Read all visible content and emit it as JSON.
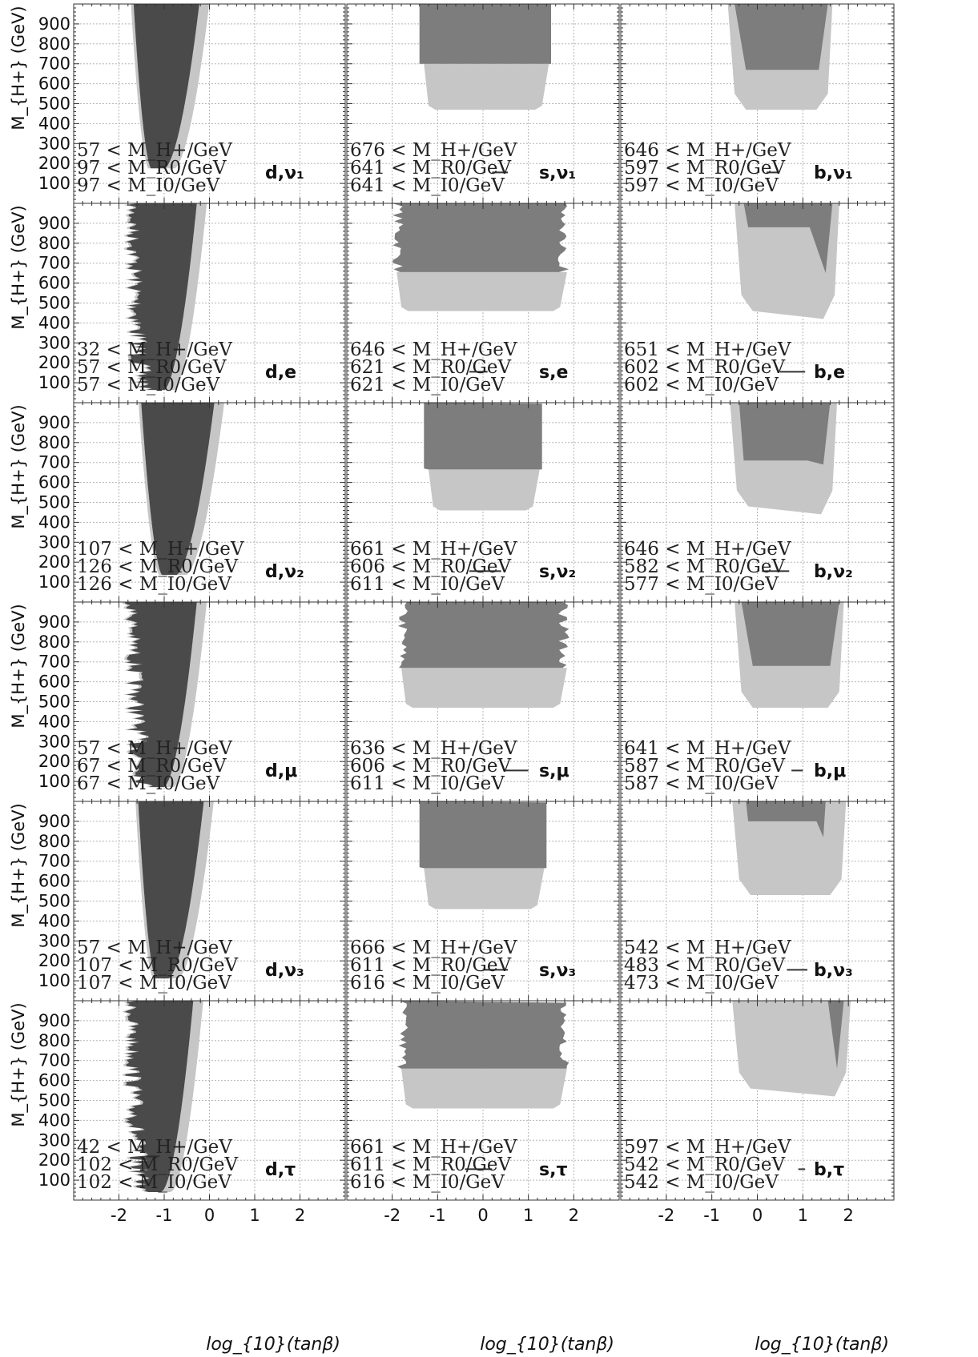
{
  "figure": {
    "ylabel": "M_{H+} (GeV)",
    "xlabel": "log_{10}(tanβ)"
  },
  "chart_data": {
    "type": "scatter",
    "grid": true,
    "xlim": [
      -3,
      3
    ],
    "ylim": [
      0,
      1000
    ],
    "xticks": [
      "-2",
      "-1",
      "0",
      "1",
      "2"
    ],
    "xtick_values": [
      -2,
      -1,
      0,
      1,
      2
    ],
    "yticks": [
      "100",
      "200",
      "300",
      "400",
      "500",
      "600",
      "700",
      "800",
      "900"
    ],
    "ytick_values": [
      100,
      200,
      300,
      400,
      500,
      600,
      700,
      800,
      900
    ],
    "colors": {
      "dark": "#4a4a4a",
      "medium": "#7d7d7d",
      "light": "#c6c6c6",
      "grid": "#b5b5b5"
    },
    "panels": [
      {
        "label": "d,ν₁",
        "ann": [
          "57 < M_H+/GeV",
          "97 < M_R0/GeV",
          "97 < M_I0/GeV"
        ],
        "shape": "d",
        "p": [
          -1.5,
          170,
          0.9,
          2.2
        ],
        "smooth": true,
        "marker": null
      },
      {
        "label": "s,ν₁",
        "ann": [
          "676 < M_H+/GeV",
          "641 < M_R0/GeV",
          "641 < M_I0/GeV"
        ],
        "shape": "s",
        "p": [
          -1.4,
          1.5,
          470,
          700,
          0
        ],
        "marker": [
          0.2,
          0.55,
          155
        ]
      },
      {
        "label": "b,ν₁",
        "ann": [
          "646 < M_H+/GeV",
          "597 < M_R0/GeV",
          "597 < M_I0/GeV"
        ],
        "shape": "b",
        "p": [
          -0.55,
          1.6,
          470,
          670
        ],
        "marker": [
          0.2,
          0.45,
          155
        ]
      },
      {
        "label": "d,e",
        "ann": [
          "32 < M_H+/GeV",
          "57 < M_R0/GeV",
          "57 < M_I0/GeV"
        ],
        "shape": "d",
        "p": [
          -1.5,
          60,
          1.0,
          2.0
        ],
        "smooth": false,
        "marker": null
      },
      {
        "label": "s,e",
        "ann": [
          "646 < M_H+/GeV",
          "621 < M_R0/GeV",
          "621 < M_I0/GeV"
        ],
        "shape": "s",
        "p": [
          -2.0,
          1.9,
          460,
          655,
          1
        ],
        "marker": [
          -0.3,
          0.1,
          155
        ]
      },
      {
        "label": "b,e",
        "ann": [
          "651 < M_H+/GeV",
          "602 < M_R0/GeV",
          "602 < M_I0/GeV"
        ],
        "shape": "b2",
        "p": [
          -0.4,
          1.75,
          460,
          880,
          650
        ],
        "marker": [
          0.5,
          1.05,
          155
        ]
      },
      {
        "label": "d,ν₂",
        "ann": [
          "107 < M_H+/GeV",
          "126 < M_R0/GeV",
          "126 < M_I0/GeV"
        ],
        "shape": "d",
        "p": [
          -1.25,
          130,
          1.0,
          2.5
        ],
        "smooth": true,
        "marker": null
      },
      {
        "label": "s,ν₂",
        "ann": [
          "661 < M_H+/GeV",
          "606 < M_R0/GeV",
          "611 < M_I0/GeV"
        ],
        "shape": "s",
        "p": [
          -1.3,
          1.3,
          460,
          665,
          0
        ],
        "marker": [
          -0.3,
          0.4,
          155
        ]
      },
      {
        "label": "b,ν₂",
        "ann": [
          "646 < M_H+/GeV",
          "582 < M_R0/GeV",
          "577 < M_I0/GeV"
        ],
        "shape": "b2",
        "p": [
          -0.5,
          1.7,
          480,
          710,
          690
        ],
        "marker": [
          0.1,
          0.7,
          155
        ]
      },
      {
        "label": "d,μ",
        "ann": [
          "57 < M_H+/GeV",
          "67 < M_R0/GeV",
          "67 < M_I0/GeV"
        ],
        "shape": "d",
        "p": [
          -1.5,
          70,
          1.1,
          2.0
        ],
        "smooth": false,
        "marker": null
      },
      {
        "label": "s,μ",
        "ann": [
          "636 < M_H+/GeV",
          "606 < M_R0/GeV",
          "611 < M_I0/GeV"
        ],
        "shape": "s",
        "p": [
          -1.9,
          1.9,
          470,
          670,
          1
        ],
        "marker": [
          0.5,
          1.0,
          155
        ]
      },
      {
        "label": "b,μ",
        "ann": [
          "641 < M_H+/GeV",
          "587 < M_R0/GeV",
          "587 < M_I0/GeV"
        ],
        "shape": "b",
        "p": [
          -0.4,
          1.85,
          470,
          680
        ],
        "marker": [
          0.75,
          1.0,
          155
        ]
      },
      {
        "label": "d,ν₃",
        "ann": [
          "57 < M_H+/GeV",
          "107 < M_R0/GeV",
          "107 < M_I0/GeV"
        ],
        "shape": "d",
        "p": [
          -1.4,
          110,
          1.1,
          2.2
        ],
        "smooth": true,
        "marker": null
      },
      {
        "label": "s,ν₃",
        "ann": [
          "666 < M_H+/GeV",
          "611 < M_R0/GeV",
          "616 < M_I0/GeV"
        ],
        "shape": "s",
        "p": [
          -1.4,
          1.4,
          460,
          665,
          0
        ],
        "marker": [
          0.0,
          0.55,
          155
        ]
      },
      {
        "label": "b,ν₃",
        "ann": [
          "542 < M_H+/GeV",
          "483 < M_R0/GeV",
          "473 < M_I0/GeV"
        ],
        "shape": "b3",
        "p": [
          -0.45,
          1.9,
          530,
          900,
          780
        ],
        "marker": [
          0.65,
          1.1,
          155
        ]
      },
      {
        "label": "d,τ",
        "ann": [
          "42 < M_H+/GeV",
          "102 < M_R0/GeV",
          "102 < M_I0/GeV"
        ],
        "shape": "d",
        "p": [
          -1.55,
          40,
          1.0,
          1.9
        ],
        "smooth": false,
        "marker": [
          -1.4,
          -1.1,
          220
        ]
      },
      {
        "label": "s,τ",
        "ann": [
          "661 < M_H+/GeV",
          "611 < M_R0/GeV",
          "616 < M_I0/GeV"
        ],
        "shape": "s",
        "p": [
          -1.9,
          1.9,
          460,
          660,
          1
        ],
        "marker": [
          -0.4,
          0.2,
          155
        ]
      },
      {
        "label": "b,τ",
        "ann": [
          "597 < M_H+/GeV",
          "542 < M_R0/GeV",
          "542 < M_I0/GeV"
        ],
        "shape": "b4",
        "p": [
          -0.45,
          2.0,
          560,
          660
        ],
        "marker": [
          0.9,
          1.05,
          155
        ]
      }
    ]
  }
}
